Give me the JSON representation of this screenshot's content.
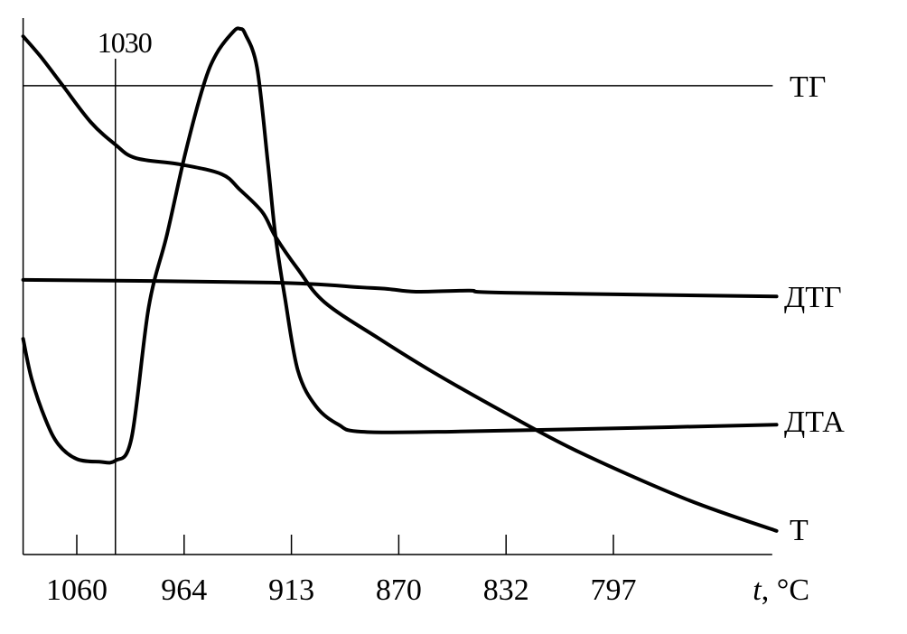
{
  "chart_data": {
    "type": "line",
    "title": "",
    "xlabel_italic": "t",
    "xlabel_unit": ", °C",
    "x_ticks": [
      "1060",
      "964",
      "913",
      "870",
      "832",
      "797"
    ],
    "x_units_note": "x values in tick-index units (0 = 1060 tick, 5 = 797 tick); y in arbitrary signal units",
    "xlim": [
      -0.5,
      6.48
    ],
    "ylim": [
      0,
      100
    ],
    "grid": false,
    "marker_line": {
      "label": "1030",
      "x": 0.36
    },
    "series": [
      {
        "name": "ТГ",
        "points": [
          [
            -0.5,
            87.4
          ],
          [
            6.48,
            87.4
          ]
        ],
        "stroke": "thin"
      },
      {
        "name": "ДТГ",
        "points": [
          [
            -0.5,
            51.2
          ],
          [
            1.81,
            50.7
          ],
          [
            2.65,
            49.8
          ],
          [
            2.9,
            49.5
          ],
          [
            3.16,
            49.0
          ],
          [
            3.66,
            49.2
          ],
          [
            4.0,
            48.8
          ],
          [
            6.52,
            48.1
          ]
        ]
      },
      {
        "name": "ДТА",
        "points": [
          [
            -0.5,
            40.2
          ],
          [
            -0.42,
            32.7
          ],
          [
            -0.29,
            25.1
          ],
          [
            -0.17,
            20.5
          ],
          [
            0.0,
            17.8
          ],
          [
            0.21,
            17.3
          ],
          [
            0.36,
            17.5
          ],
          [
            0.51,
            21.7
          ],
          [
            0.67,
            46.1
          ],
          [
            0.84,
            59.6
          ],
          [
            1.01,
            74.7
          ],
          [
            1.18,
            87.4
          ],
          [
            1.3,
            93.3
          ],
          [
            1.46,
            97.5
          ],
          [
            1.52,
            98.0
          ],
          [
            1.57,
            97.0
          ],
          [
            1.68,
            90.7
          ],
          [
            1.78,
            73.1
          ],
          [
            1.85,
            59.6
          ],
          [
            1.94,
            47.8
          ],
          [
            2.06,
            34.3
          ],
          [
            2.23,
            27.6
          ],
          [
            2.44,
            24.2
          ],
          [
            2.65,
            22.9
          ],
          [
            3.49,
            22.9
          ],
          [
            5.18,
            23.6
          ],
          [
            6.52,
            24.2
          ]
        ]
      },
      {
        "name": "Т",
        "points": [
          [
            -0.5,
            96.6
          ],
          [
            -0.34,
            92.9
          ],
          [
            -0.13,
            87.4
          ],
          [
            0.13,
            80.6
          ],
          [
            0.36,
            76.4
          ],
          [
            0.55,
            73.9
          ],
          [
            0.97,
            72.7
          ],
          [
            1.35,
            70.9
          ],
          [
            1.52,
            68.0
          ],
          [
            1.73,
            63.8
          ],
          [
            1.85,
            59.3
          ],
          [
            2.06,
            53.2
          ],
          [
            2.31,
            47.0
          ],
          [
            2.82,
            40.2
          ],
          [
            3.32,
            34.0
          ],
          [
            4.0,
            26.3
          ],
          [
            4.67,
            19.2
          ],
          [
            5.68,
            10.3
          ],
          [
            6.52,
            4.4
          ]
        ]
      }
    ],
    "line_color": "#000000",
    "background": "#ffffff"
  }
}
